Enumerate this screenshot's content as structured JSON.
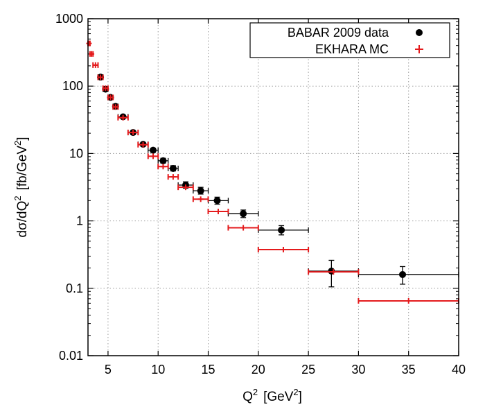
{
  "chart_data": {
    "type": "scatter",
    "xlabel": "Q",
    "xlabel_sup": "2",
    "xlabel_unit": "[GeV",
    "xlabel_unit_sup": "2",
    "xlabel_unit_close": "]",
    "ylabel": "dσ/dQ",
    "ylabel_sup": "2",
    "ylabel_unit": "[fb/GeV",
    "ylabel_unit_sup": "2",
    "ylabel_unit_close": "]",
    "xlim": [
      3,
      40
    ],
    "ylim": [
      0.01,
      1000
    ],
    "yscale": "log",
    "grid": true,
    "legend_position": "top-right",
    "x_ticks": [
      5,
      10,
      15,
      20,
      25,
      30,
      35,
      40
    ],
    "y_ticks": [
      0.01,
      0.1,
      1,
      10,
      100,
      1000
    ],
    "y_tick_labels": [
      "0.01",
      "0.1",
      "1",
      "10",
      "100",
      "1000"
    ],
    "series": [
      {
        "name": "BABAR 2009 data",
        "color": "#000000",
        "marker": "circle",
        "points": [
          {
            "x": 4.25,
            "xlo": 4.0,
            "xhi": 4.5,
            "y": 136,
            "ylo": 128,
            "yhi": 144
          },
          {
            "x": 4.75,
            "xlo": 4.5,
            "xhi": 5.0,
            "y": 90,
            "ylo": 85,
            "yhi": 95
          },
          {
            "x": 5.25,
            "xlo": 5.0,
            "xhi": 5.5,
            "y": 68,
            "ylo": 64,
            "yhi": 72
          },
          {
            "x": 5.75,
            "xlo": 5.5,
            "xhi": 6.0,
            "y": 50,
            "ylo": 47,
            "yhi": 53
          },
          {
            "x": 6.5,
            "xlo": 6.0,
            "xhi": 7.0,
            "y": 35,
            "ylo": 33,
            "yhi": 37
          },
          {
            "x": 7.5,
            "xlo": 7.0,
            "xhi": 8.0,
            "y": 20.5,
            "ylo": 19.3,
            "yhi": 21.7
          },
          {
            "x": 8.5,
            "xlo": 8.0,
            "xhi": 9.0,
            "y": 13.7,
            "ylo": 12.9,
            "yhi": 14.5
          },
          {
            "x": 9.5,
            "xlo": 9.0,
            "xhi": 10.0,
            "y": 11.2,
            "ylo": 10.4,
            "yhi": 12.0
          },
          {
            "x": 10.5,
            "xlo": 10.0,
            "xhi": 11.0,
            "y": 7.8,
            "ylo": 7.2,
            "yhi": 8.5
          },
          {
            "x": 11.5,
            "xlo": 11.0,
            "xhi": 12.0,
            "y": 6.0,
            "ylo": 5.5,
            "yhi": 6.6
          },
          {
            "x": 12.75,
            "xlo": 12.0,
            "xhi": 13.5,
            "y": 3.4,
            "ylo": 3.05,
            "yhi": 3.8
          },
          {
            "x": 14.25,
            "xlo": 13.5,
            "xhi": 15.0,
            "y": 2.8,
            "ylo": 2.5,
            "yhi": 3.15
          },
          {
            "x": 15.9,
            "xlo": 15.0,
            "xhi": 17.0,
            "y": 2.0,
            "ylo": 1.77,
            "yhi": 2.25
          },
          {
            "x": 18.5,
            "xlo": 17.0,
            "xhi": 20.0,
            "y": 1.28,
            "ylo": 1.12,
            "yhi": 1.45
          },
          {
            "x": 22.3,
            "xlo": 20.0,
            "xhi": 25.0,
            "y": 0.73,
            "ylo": 0.62,
            "yhi": 0.85
          },
          {
            "x": 27.3,
            "xlo": 25.0,
            "xhi": 30.0,
            "y": 0.18,
            "ylo": 0.105,
            "yhi": 0.26
          },
          {
            "x": 34.4,
            "xlo": 30.0,
            "xhi": 40.0,
            "y": 0.16,
            "ylo": 0.115,
            "yhi": 0.21
          }
        ]
      },
      {
        "name": "EKHARA MC",
        "color": "#e41a1c",
        "marker": "plus",
        "points": [
          {
            "x": 3.1,
            "xlo": 3.0,
            "xhi": 3.2,
            "y": 430
          },
          {
            "x": 3.35,
            "xlo": 3.2,
            "xhi": 3.5,
            "y": 300
          },
          {
            "x": 3.75,
            "xlo": 3.5,
            "xhi": 4.0,
            "y": 205
          },
          {
            "x": 4.25,
            "xlo": 4.0,
            "xhi": 4.5,
            "y": 135
          },
          {
            "x": 4.75,
            "xlo": 4.5,
            "xhi": 5.0,
            "y": 93
          },
          {
            "x": 5.25,
            "xlo": 5.0,
            "xhi": 5.5,
            "y": 68
          },
          {
            "x": 5.75,
            "xlo": 5.5,
            "xhi": 6.0,
            "y": 49
          },
          {
            "x": 6.5,
            "xlo": 6.0,
            "xhi": 7.0,
            "y": 34
          },
          {
            "x": 7.5,
            "xlo": 7.0,
            "xhi": 8.0,
            "y": 20.5
          },
          {
            "x": 8.5,
            "xlo": 8.0,
            "xhi": 9.0,
            "y": 13.5
          },
          {
            "x": 9.5,
            "xlo": 9.0,
            "xhi": 10.0,
            "y": 9.1
          },
          {
            "x": 10.5,
            "xlo": 10.0,
            "xhi": 11.0,
            "y": 6.4
          },
          {
            "x": 11.5,
            "xlo": 11.0,
            "xhi": 12.0,
            "y": 4.5
          },
          {
            "x": 12.75,
            "xlo": 12.0,
            "xhi": 13.5,
            "y": 3.15
          },
          {
            "x": 14.25,
            "xlo": 13.5,
            "xhi": 15.0,
            "y": 2.1
          },
          {
            "x": 16.0,
            "xlo": 15.0,
            "xhi": 17.0,
            "y": 1.38
          },
          {
            "x": 18.5,
            "xlo": 17.0,
            "xhi": 20.0,
            "y": 0.79
          },
          {
            "x": 22.5,
            "xlo": 20.0,
            "xhi": 25.0,
            "y": 0.375
          },
          {
            "x": 27.5,
            "xlo": 25.0,
            "xhi": 30.0,
            "y": 0.175
          },
          {
            "x": 35.0,
            "xlo": 30.0,
            "xhi": 40.0,
            "y": 0.065
          }
        ]
      }
    ]
  }
}
